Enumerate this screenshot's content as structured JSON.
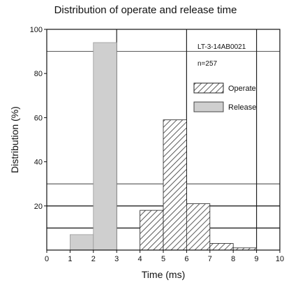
{
  "chart_data": {
    "type": "bar",
    "title": "Distribution of operate and release time",
    "xlabel": "Time (ms)",
    "ylabel": "Distribution (%)",
    "xlim": [
      0,
      10
    ],
    "ylim": [
      0,
      100
    ],
    "x_ticks": [
      "0",
      "1",
      "2",
      "3",
      "4",
      "5",
      "6",
      "7",
      "8",
      "9",
      "10"
    ],
    "y_ticks": [
      "20",
      "40",
      "60",
      "80",
      "100"
    ],
    "bar_width": 1,
    "series": [
      {
        "name": "Operate",
        "pattern": "hatch",
        "bars": [
          {
            "x_start": 4,
            "value": 18
          },
          {
            "x_start": 5,
            "value": 59
          },
          {
            "x_start": 6,
            "value": 21
          },
          {
            "x_start": 7,
            "value": 3
          },
          {
            "x_start": 8,
            "value": 1
          }
        ]
      },
      {
        "name": "Release",
        "color": "#cfcfcf",
        "bars": [
          {
            "x_start": 1,
            "value": 7
          },
          {
            "x_start": 2,
            "value": 94
          }
        ]
      }
    ],
    "annotations": [
      "LT-3-14AB0021",
      "n=257"
    ],
    "legend": {
      "placement": "top-right",
      "entries": [
        "Operate",
        "Release"
      ]
    },
    "grid": true
  }
}
